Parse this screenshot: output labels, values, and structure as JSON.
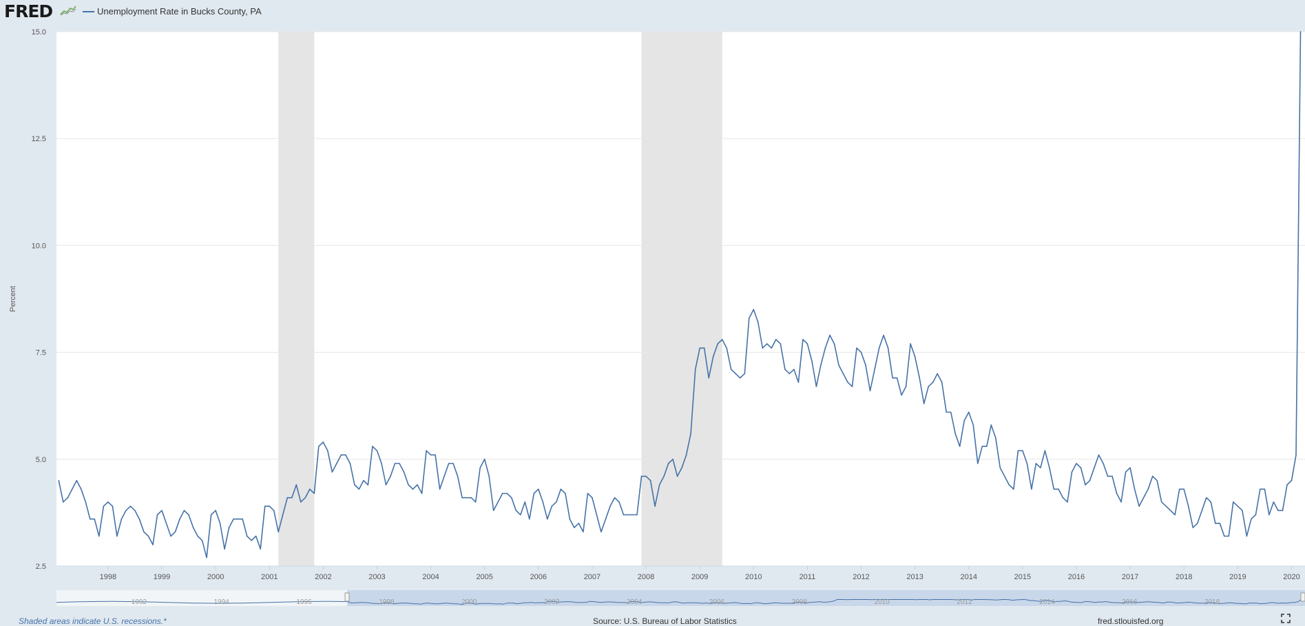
{
  "header": {
    "logo_text": "FRED",
    "series_label": "Unemployment Rate in Bucks County, PA",
    "series_color": "#4572a7"
  },
  "footer": {
    "recession_note": "Shaded areas indicate U.S. recessions.*",
    "source": "Source: U.S. Bureau of Labor Statistics",
    "site": "fred.stlouisfed.org"
  },
  "chart_data": {
    "type": "line",
    "title": "",
    "xlabel": "",
    "ylabel": "Percent",
    "ylim": [
      2.5,
      15.0
    ],
    "y_ticks": [
      "2.5",
      "5.0",
      "7.5",
      "10.0",
      "12.5",
      "15.0"
    ],
    "x_range": [
      "1997-02",
      "2020-04"
    ],
    "x_ticks": [
      "1998",
      "1999",
      "2000",
      "2001",
      "2002",
      "2003",
      "2004",
      "2005",
      "2006",
      "2007",
      "2008",
      "2009",
      "2010",
      "2011",
      "2012",
      "2013",
      "2014",
      "2015",
      "2016",
      "2017",
      "2018",
      "2019",
      "2020"
    ],
    "recessions": [
      [
        "2001-03",
        "2001-11"
      ],
      [
        "2007-12",
        "2009-06"
      ]
    ],
    "navigator_ticks": [
      "1992",
      "1994",
      "1996",
      "1998",
      "2000",
      "2002",
      "2004",
      "2006",
      "2008",
      "2010",
      "2012",
      "2014",
      "2016",
      "2018"
    ],
    "series": [
      {
        "name": "Unemployment Rate in Bucks County, PA",
        "color": "#4572a7",
        "start": "1997-02",
        "values": [
          4.5,
          4.0,
          4.1,
          4.3,
          4.5,
          4.3,
          4.0,
          3.6,
          3.6,
          3.2,
          3.9,
          4.0,
          3.9,
          3.2,
          3.6,
          3.8,
          3.9,
          3.8,
          3.6,
          3.3,
          3.2,
          3.0,
          3.7,
          3.8,
          3.5,
          3.2,
          3.3,
          3.6,
          3.8,
          3.7,
          3.4,
          3.2,
          3.1,
          2.7,
          3.7,
          3.8,
          3.5,
          2.9,
          3.4,
          3.6,
          3.6,
          3.6,
          3.2,
          3.1,
          3.2,
          2.9,
          3.9,
          3.9,
          3.8,
          3.3,
          3.7,
          4.1,
          4.1,
          4.4,
          4.0,
          4.1,
          4.3,
          4.2,
          5.3,
          5.4,
          5.2,
          4.7,
          4.9,
          5.1,
          5.1,
          4.9,
          4.4,
          4.3,
          4.5,
          4.4,
          5.3,
          5.2,
          4.9,
          4.4,
          4.6,
          4.9,
          4.9,
          4.7,
          4.4,
          4.3,
          4.4,
          4.2,
          5.2,
          5.1,
          5.1,
          4.3,
          4.6,
          4.9,
          4.9,
          4.6,
          4.1,
          4.1,
          4.1,
          4.0,
          4.8,
          5.0,
          4.6,
          3.8,
          4.0,
          4.2,
          4.2,
          4.1,
          3.8,
          3.7,
          4.0,
          3.6,
          4.2,
          4.3,
          4.0,
          3.6,
          3.9,
          4.0,
          4.3,
          4.2,
          3.6,
          3.4,
          3.5,
          3.3,
          4.2,
          4.1,
          3.7,
          3.3,
          3.6,
          3.9,
          4.1,
          4.0,
          3.7,
          3.7,
          3.7,
          3.7,
          4.6,
          4.6,
          4.5,
          3.9,
          4.4,
          4.6,
          4.9,
          5.0,
          4.6,
          4.8,
          5.1,
          5.6,
          7.1,
          7.6,
          7.6,
          6.9,
          7.4,
          7.7,
          7.8,
          7.6,
          7.1,
          7.0,
          6.9,
          7.0,
          8.3,
          8.5,
          8.2,
          7.6,
          7.7,
          7.6,
          7.8,
          7.7,
          7.1,
          7.0,
          7.1,
          6.8,
          7.8,
          7.7,
          7.3,
          6.7,
          7.2,
          7.6,
          7.9,
          7.7,
          7.2,
          7.0,
          6.8,
          6.7,
          7.6,
          7.5,
          7.2,
          6.6,
          7.1,
          7.6,
          7.9,
          7.6,
          6.9,
          6.9,
          6.5,
          6.7,
          7.7,
          7.4,
          6.9,
          6.3,
          6.7,
          6.8,
          7.0,
          6.8,
          6.1,
          6.1,
          5.6,
          5.3,
          5.9,
          6.1,
          5.8,
          4.9,
          5.3,
          5.3,
          5.8,
          5.5,
          4.8,
          4.6,
          4.4,
          4.3,
          5.2,
          5.2,
          4.9,
          4.3,
          4.9,
          4.8,
          5.2,
          4.8,
          4.3,
          4.3,
          4.1,
          4.0,
          4.7,
          4.9,
          4.8,
          4.4,
          4.5,
          4.8,
          5.1,
          4.9,
          4.6,
          4.6,
          4.2,
          4.0,
          4.7,
          4.8,
          4.3,
          3.9,
          4.1,
          4.3,
          4.6,
          4.5,
          4.0,
          3.9,
          3.8,
          3.7,
          4.3,
          4.3,
          3.9,
          3.4,
          3.5,
          3.8,
          4.1,
          4.0,
          3.5,
          3.5,
          3.2,
          3.2,
          4.0,
          3.9,
          3.8,
          3.2,
          3.6,
          3.7,
          4.3,
          4.3,
          3.7,
          4.0,
          3.8,
          3.8,
          4.4,
          4.5,
          5.1,
          15.0
        ]
      }
    ]
  }
}
